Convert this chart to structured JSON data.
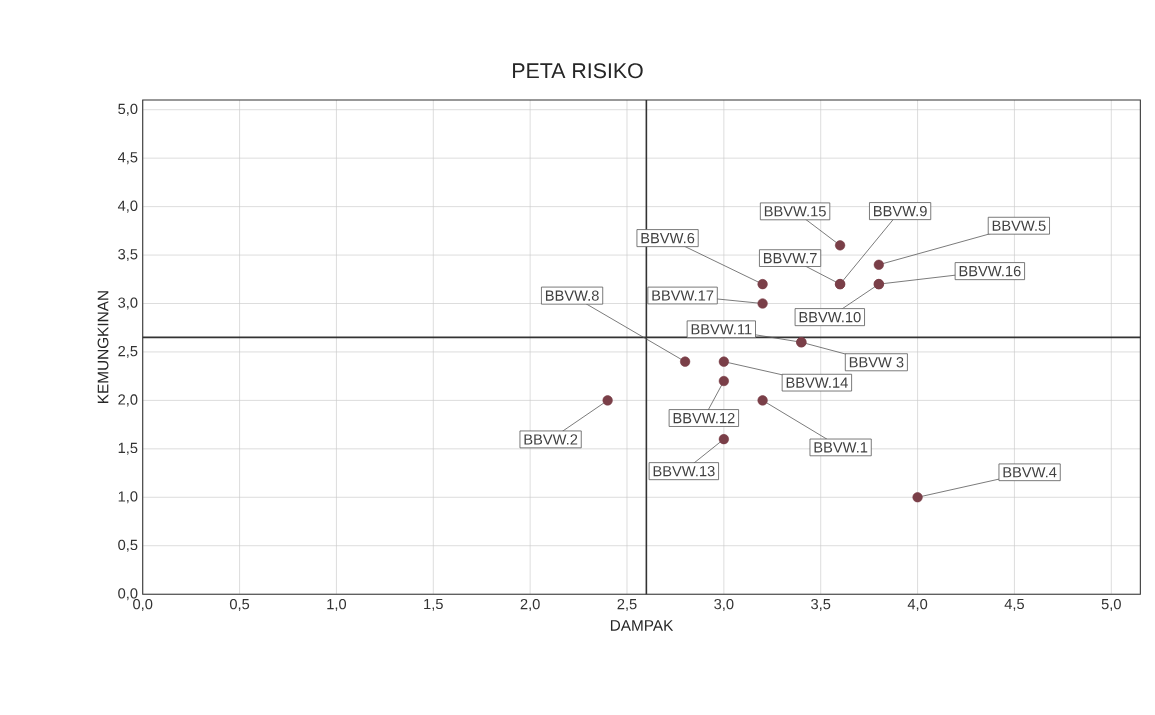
{
  "chart_data": {
    "type": "scatter",
    "title": "PETA RISIKO",
    "xlabel": "DAMPAK",
    "ylabel": "KEMUNGKINAN",
    "x": [
      3.2,
      2.4,
      3.4,
      4.0,
      3.8,
      3.2,
      3.6,
      2.8,
      3.6,
      3.8,
      3.4,
      3.0,
      3.0,
      3.0,
      3.6,
      3.8,
      3.2
    ],
    "series": [
      {
        "color": "#7a3f48",
        "values": [
          2.0,
          2.0,
          2.6,
          1.0,
          3.4,
          3.2,
          3.2,
          2.4,
          3.2,
          3.2,
          2.6,
          2.2,
          1.6,
          2.4,
          3.6,
          3.2,
          3.0
        ]
      }
    ],
    "annotations": [
      {
        "text": "BBVW.1",
        "x": 3.2,
        "y": 2.0
      },
      {
        "text": "BBVW.2",
        "x": 2.4,
        "y": 2.0
      },
      {
        "text": "BBVW 3",
        "x": 3.4,
        "y": 2.6
      },
      {
        "text": "BBVW.4",
        "x": 4.0,
        "y": 1.0
      },
      {
        "text": "BBVW.5",
        "x": 3.8,
        "y": 3.4
      },
      {
        "text": "BBVW.6",
        "x": 3.2,
        "y": 3.2
      },
      {
        "text": "BBVW.7",
        "x": 3.6,
        "y": 3.2
      },
      {
        "text": "BBVW.8",
        "x": 2.8,
        "y": 2.4
      },
      {
        "text": "BBVW.9",
        "x": 3.6,
        "y": 3.2
      },
      {
        "text": "BBVW.10",
        "x": 3.8,
        "y": 3.2
      },
      {
        "text": "BBVW.11",
        "x": 3.4,
        "y": 2.6
      },
      {
        "text": "BBVW.12",
        "x": 3.0,
        "y": 2.2
      },
      {
        "text": "BBVW.13",
        "x": 3.0,
        "y": 1.6
      },
      {
        "text": "BBVW.14",
        "x": 3.0,
        "y": 2.4
      },
      {
        "text": "BBVW.15",
        "x": 3.6,
        "y": 3.6
      },
      {
        "text": "BBVW.16",
        "x": 3.8,
        "y": 3.2
      },
      {
        "text": "BBVW.17",
        "x": 3.2,
        "y": 3.0
      }
    ],
    "xlim": [
      0,
      5.15
    ],
    "ylim": [
      0,
      5.1
    ],
    "xticks": [
      {
        "value": 0,
        "label": "0,0"
      },
      {
        "value": 0.5,
        "label": "0,5"
      },
      {
        "value": 1,
        "label": "1,0"
      },
      {
        "value": 1.5,
        "label": "1,5"
      },
      {
        "value": 2,
        "label": "2,0"
      },
      {
        "value": 2.5,
        "label": "2,5"
      },
      {
        "value": 3,
        "label": "3,0"
      },
      {
        "value": 3.5,
        "label": "3,5"
      },
      {
        "value": 4,
        "label": "4,0"
      },
      {
        "value": 4.5,
        "label": "4,5"
      },
      {
        "value": 5,
        "label": "5,0"
      }
    ],
    "yticks": [
      {
        "value": 0,
        "label": "0,0"
      },
      {
        "value": 0.5,
        "label": "0,5"
      },
      {
        "value": 1,
        "label": "1,0"
      },
      {
        "value": 1.5,
        "label": "1,5"
      },
      {
        "value": 2,
        "label": "2,0"
      },
      {
        "value": 2.5,
        "label": "2,5"
      },
      {
        "value": 3,
        "label": "3,0"
      },
      {
        "value": 3.5,
        "label": "3,5"
      },
      {
        "value": 4,
        "label": "4,0"
      },
      {
        "value": 4.5,
        "label": "4,5"
      },
      {
        "value": 5,
        "label": "5,0"
      }
    ],
    "ref_lines": [
      {
        "axis": "x",
        "value": 2.6,
        "color": "#333333"
      },
      {
        "axis": "y",
        "value": 2.65,
        "color": "#333333"
      }
    ],
    "grid": true,
    "marker": "circle"
  }
}
